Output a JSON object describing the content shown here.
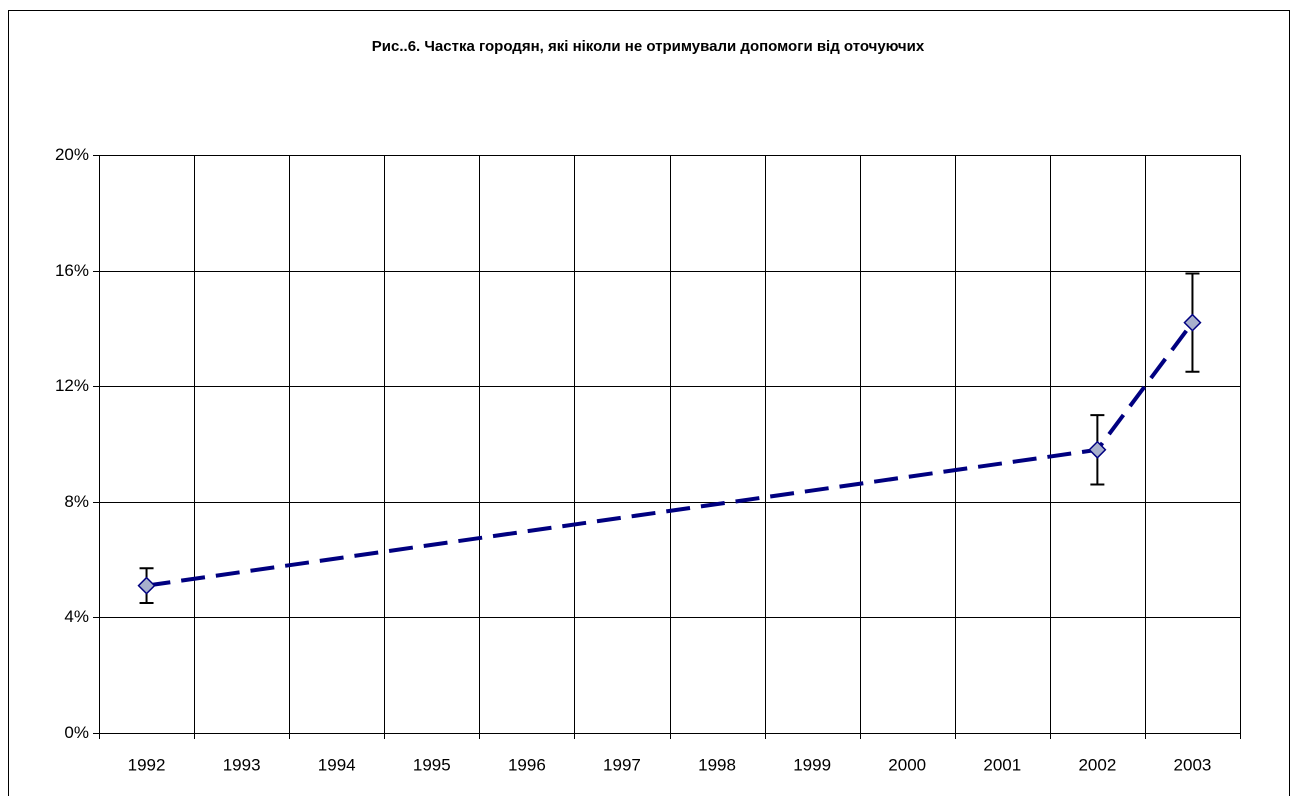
{
  "chart_data": {
    "type": "line",
    "title": "Рис..6. Частка городян, які ніколи не отримували допомоги від оточуючих",
    "categories": [
      "1992",
      "1993",
      "1994",
      "1995",
      "1996",
      "1997",
      "1998",
      "1999",
      "2000",
      "2001",
      "2002",
      "2003"
    ],
    "x": [
      1992,
      2002,
      2003
    ],
    "xlim": [
      1991.5,
      2003.5
    ],
    "values": [
      5.1,
      9.8,
      14.2
    ],
    "errors": [
      0.6,
      1.2,
      1.7
    ],
    "color": "#000080",
    "marker_color": "#a8b0cc",
    "ylim": [
      0,
      20
    ],
    "yticks": [
      {
        "value": 0,
        "label": "0%"
      },
      {
        "value": 4,
        "label": "4%"
      },
      {
        "value": 8,
        "label": "8%"
      },
      {
        "value": 12,
        "label": "12%"
      },
      {
        "value": 16,
        "label": "16%"
      },
      {
        "value": 20,
        "label": "20%"
      }
    ],
    "grid": true
  }
}
